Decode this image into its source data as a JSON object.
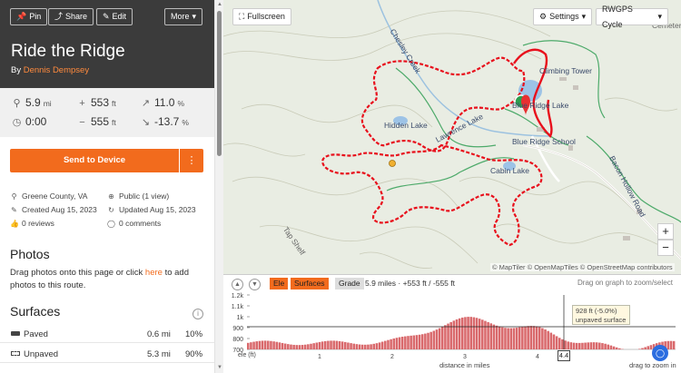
{
  "header": {
    "pin_label": "Pin",
    "share_label": "Share",
    "edit_label": "Edit",
    "more_label": "More",
    "title": "Ride the Ridge",
    "by_prefix": "By",
    "author": "Dennis Dempsey"
  },
  "stats": {
    "distance": {
      "value": "5.9",
      "unit": "mi"
    },
    "elev_gain": {
      "value": "553",
      "unit": "ft"
    },
    "grade_up": {
      "value": "11.0",
      "unit": "%"
    },
    "duration": {
      "value": "0:00",
      "unit": ""
    },
    "elev_loss": {
      "value": "555",
      "unit": "ft"
    },
    "grade_down": {
      "value": "-13.7",
      "unit": "%"
    }
  },
  "actions": {
    "send_label": "Send to Device",
    "send_more": "⋮"
  },
  "meta": {
    "location": "Greene County, VA",
    "visibility": "Public (1 view)",
    "created": "Created Aug 15, 2023",
    "updated": "Updated Aug 15, 2023",
    "reviews": "0 reviews",
    "comments": "0 comments"
  },
  "photos": {
    "title": "Photos",
    "text_before": "Drag photos onto this page or click ",
    "link": "here",
    "text_after": " to add photos to this route."
  },
  "surfaces": {
    "title": "Surfaces",
    "rows": [
      {
        "name": "Paved",
        "distance": "0.6 mi",
        "percent": "10%"
      },
      {
        "name": "Unpaved",
        "distance": "5.3 mi",
        "percent": "90%"
      }
    ]
  },
  "map": {
    "fullscreen_label": "Fullscreen",
    "settings_label": "Settings",
    "layer_label": "RWGPS Cycle",
    "zoom_in": "+",
    "zoom_out": "−",
    "attribution": "© MapTiler © OpenMapTiles © OpenStreetMap contributors",
    "labels": [
      "Chesley Creek",
      "Climbing Tower",
      "Blue Ridge Lake",
      "Hidden Lake",
      "Lawrence Lake",
      "Blue Ridge School",
      "Cabin Lake",
      "Bacon Hollow Road",
      "Tap Shelf",
      "Cemetery"
    ]
  },
  "elevation": {
    "tabs": [
      "Ele",
      "Surfaces",
      "Grade"
    ],
    "summary": "5.9 miles · +553 ft / -555 ft",
    "hint": "Drag on graph to zoom/select",
    "y_label": "ele (ft)",
    "x_label": "distance in miles",
    "zoom_hint": "drag to zoom in",
    "y_ticks": [
      "1.2k",
      "1.1k",
      "1k",
      "900",
      "800",
      "700"
    ],
    "x_ticks": [
      "1",
      "2",
      "3",
      "4"
    ],
    "tooltip_line1": "928 ft (-5.0%)",
    "tooltip_line2": "unpaved surface",
    "cursor_distance": "4.4"
  },
  "colors": {
    "accent": "#f26b1d",
    "route": "#e8101c",
    "elev_fill": "#d9696c",
    "header_bg": "#3b3b3b"
  }
}
